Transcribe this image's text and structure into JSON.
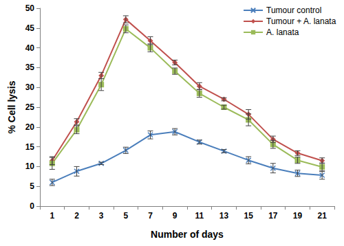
{
  "chart_data": {
    "type": "line",
    "x_label": "Number of days",
    "y_label": "% Cell lysis",
    "categories": [
      "1",
      "2",
      "3",
      "5",
      "7",
      "9",
      "11",
      "13",
      "15",
      "17",
      "19",
      "21"
    ],
    "series": [
      {
        "name": "Tumour control",
        "color": "#4a7ebb",
        "marker": "x",
        "values": [
          6,
          8.8,
          10.8,
          14.1,
          18,
          18.8,
          16.2,
          13.9,
          11.6,
          9.6,
          8.3,
          7.8
        ],
        "errors": [
          0.8,
          1.2,
          0.3,
          0.8,
          1,
          0.8,
          0.5,
          0.4,
          0.9,
          1.2,
          0.8,
          1
        ]
      },
      {
        "name": "Tumour + A. lanata",
        "color": "#c0504d",
        "marker": "diamond",
        "values": [
          11.5,
          21.3,
          33,
          47.2,
          41.8,
          36.3,
          30.3,
          27,
          23.2,
          16.9,
          13.4,
          11.5
        ],
        "errors": [
          1,
          0.8,
          0.8,
          0.9,
          1,
          0.6,
          0.9,
          0.4,
          1.2,
          0.8,
          0.6,
          0.7
        ]
      },
      {
        "name": "A. lanata",
        "color": "#9bbb59",
        "marker": "square",
        "values": [
          10.8,
          19.3,
          30.7,
          44.8,
          40,
          34.1,
          28.5,
          25,
          21.8,
          15.6,
          11.6,
          9.9
        ],
        "errors": [
          1.5,
          1,
          1.5,
          1,
          1,
          0.8,
          1,
          0.5,
          1.5,
          1,
          0.8,
          1
        ]
      }
    ],
    "ylim": [
      0,
      50
    ],
    "yticks": [
      0,
      5,
      10,
      15,
      20,
      25,
      30,
      35,
      40,
      45,
      50
    ],
    "grid": false,
    "legend": "upper right"
  }
}
